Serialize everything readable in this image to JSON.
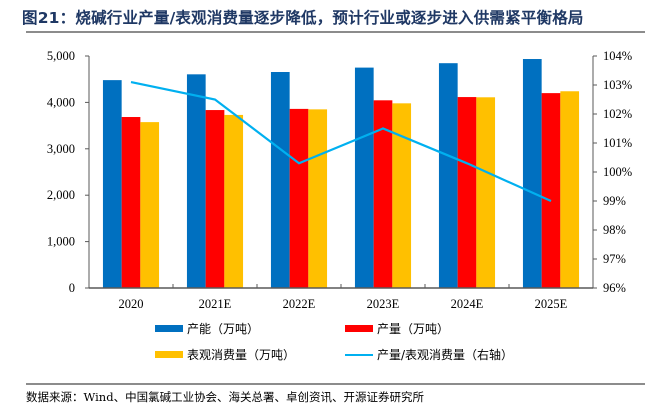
{
  "figure": {
    "title": "图21：烧碱行业产量/表观消费量逐步降低，预计行业或逐步进入供需紧平衡格局",
    "source": "数据来源：Wind、中国氯碱工业协会、海关总署、卓创资讯、开源证券研究所"
  },
  "colors": {
    "capacity": "#0070c0",
    "production": "#ff0000",
    "consumption": "#ffc000",
    "ratio": "#00b0f0",
    "axis": "#595959",
    "title": "#1f3864"
  },
  "chart_data": {
    "type": "bar",
    "title": "",
    "xlabel": "",
    "ylabel": "",
    "y2label": "",
    "categories": [
      "2020",
      "2021E",
      "2022E",
      "2023E",
      "2024E",
      "2025E"
    ],
    "series": [
      {
        "name": "产能（万吨）",
        "type": "bar",
        "axis": "left",
        "values": [
          4480,
          4605,
          4655,
          4750,
          4845,
          4935
        ]
      },
      {
        "name": "产量（万吨）",
        "type": "bar",
        "axis": "left",
        "values": [
          3685,
          3835,
          3860,
          4045,
          4115,
          4200
        ]
      },
      {
        "name": "表观消费量（万吨）",
        "type": "bar",
        "axis": "left",
        "values": [
          3575,
          3730,
          3850,
          3980,
          4110,
          4240
        ]
      },
      {
        "name": "产量/表观消费量（右轴）",
        "type": "line",
        "axis": "right",
        "values": [
          103.1,
          102.5,
          100.3,
          101.5,
          100.3,
          99.0
        ]
      }
    ],
    "ylim": [
      0,
      5000
    ],
    "y_ticks": [
      0,
      1000,
      2000,
      3000,
      4000,
      5000
    ],
    "y_tick_labels": [
      "0",
      "1,000",
      "2,000",
      "3,000",
      "4,000",
      "5,000"
    ],
    "y2lim": [
      96,
      104
    ],
    "y2_ticks": [
      96,
      97,
      98,
      99,
      100,
      101,
      102,
      103,
      104
    ],
    "y2_tick_labels": [
      "96%",
      "97%",
      "98%",
      "99%",
      "100%",
      "101%",
      "102%",
      "103%",
      "104%"
    ],
    "grid": false,
    "legend_position": "bottom"
  }
}
